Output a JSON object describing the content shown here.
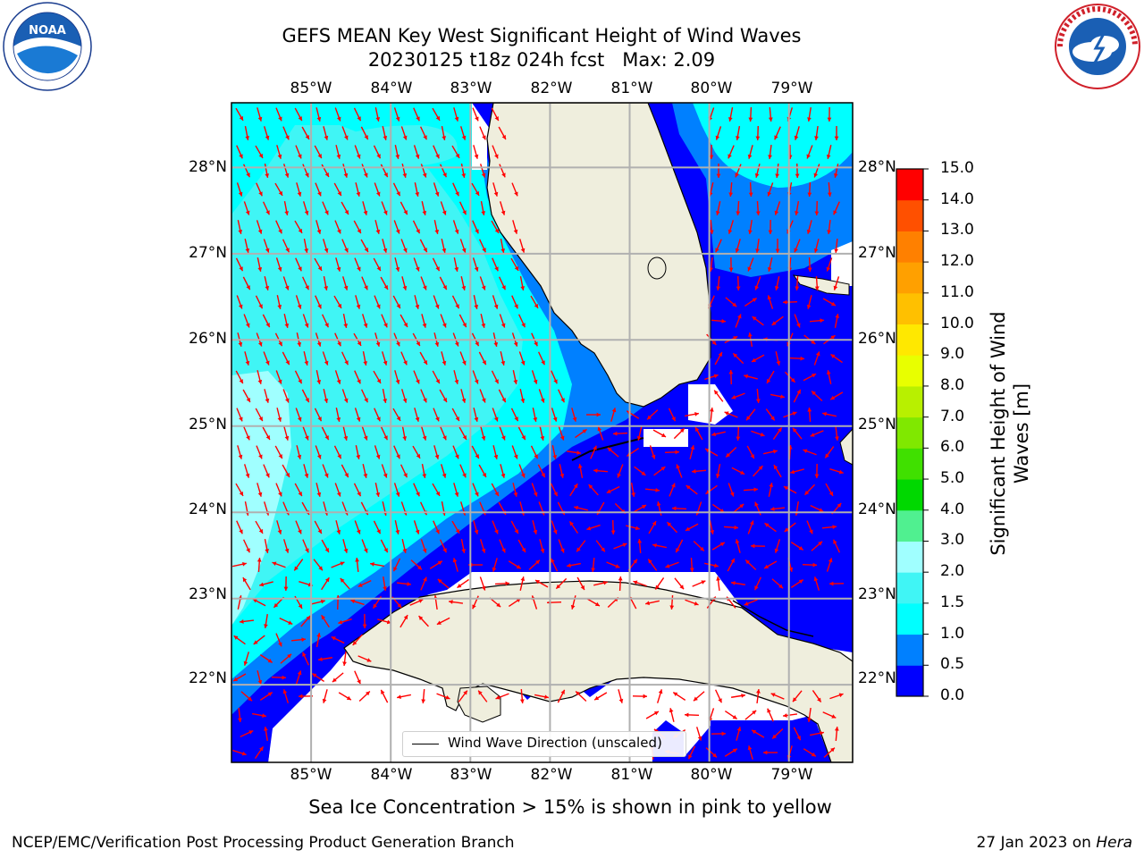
{
  "title": {
    "line1": "GEFS MEAN Key West Significant Height of Wind Waves",
    "line2": "20230125 t18z 024h fcst   Max: 2.09"
  },
  "logos": {
    "left": "NOAA",
    "left_ring_text": "NATIONAL OCEANIC AND ATMOSPHERIC ADMINISTRATION · U.S. DEPARTMENT OF COMMERCE",
    "right_ring_text": "NATIONAL WEATHER SERVICE"
  },
  "map": {
    "lon_labels": [
      "85°W",
      "84°W",
      "83°W",
      "82°W",
      "81°W",
      "80°W",
      "79°W"
    ],
    "lat_labels": [
      "28°N",
      "27°N",
      "26°N",
      "25°N",
      "24°N",
      "23°N",
      "22°N"
    ],
    "lon_range": [
      -86.0,
      -78.2
    ],
    "lat_range": [
      21.1,
      28.75
    ],
    "land_color": "#efeedd",
    "arrow_color": "#ff0000",
    "grid_color": "#b0b0b0"
  },
  "colorbar": {
    "label": "Significant Height of Wind Waves [m]",
    "tick_labels": [
      "15.0",
      "14.0",
      "13.0",
      "12.0",
      "11.0",
      "10.0",
      "9.0",
      "8.0",
      "7.0",
      "6.0",
      "5.0",
      "4.0",
      "3.0",
      "2.0",
      "1.5",
      "1.0",
      "0.5",
      "0.0"
    ],
    "levels": [
      0.0,
      0.5,
      1.0,
      1.5,
      2.0,
      3.0,
      4.0,
      5.0,
      6.0,
      7.0,
      8.0,
      9.0,
      10.0,
      11.0,
      12.0,
      13.0,
      14.0,
      15.0
    ],
    "colors": [
      "#0000ff",
      "#0080ff",
      "#00ffff",
      "#40f5f5",
      "#a0ffff",
      "#50f090",
      "#00d800",
      "#40e000",
      "#80e800",
      "#b8f000",
      "#e8ff00",
      "#ffe800",
      "#ffc000",
      "#ffa000",
      "#ff8000",
      "#ff5000",
      "#ff0000"
    ]
  },
  "legend": {
    "label": "Wind Wave Direction (unscaled)"
  },
  "caption": "Sea Ice Concentration > 15% is shown in pink to yellow",
  "footer": {
    "left": "NCEP/EMC/Verification Post Processing Product Generation Branch",
    "right_date": "27 Jan 2023 on ",
    "right_host": "Hera"
  }
}
